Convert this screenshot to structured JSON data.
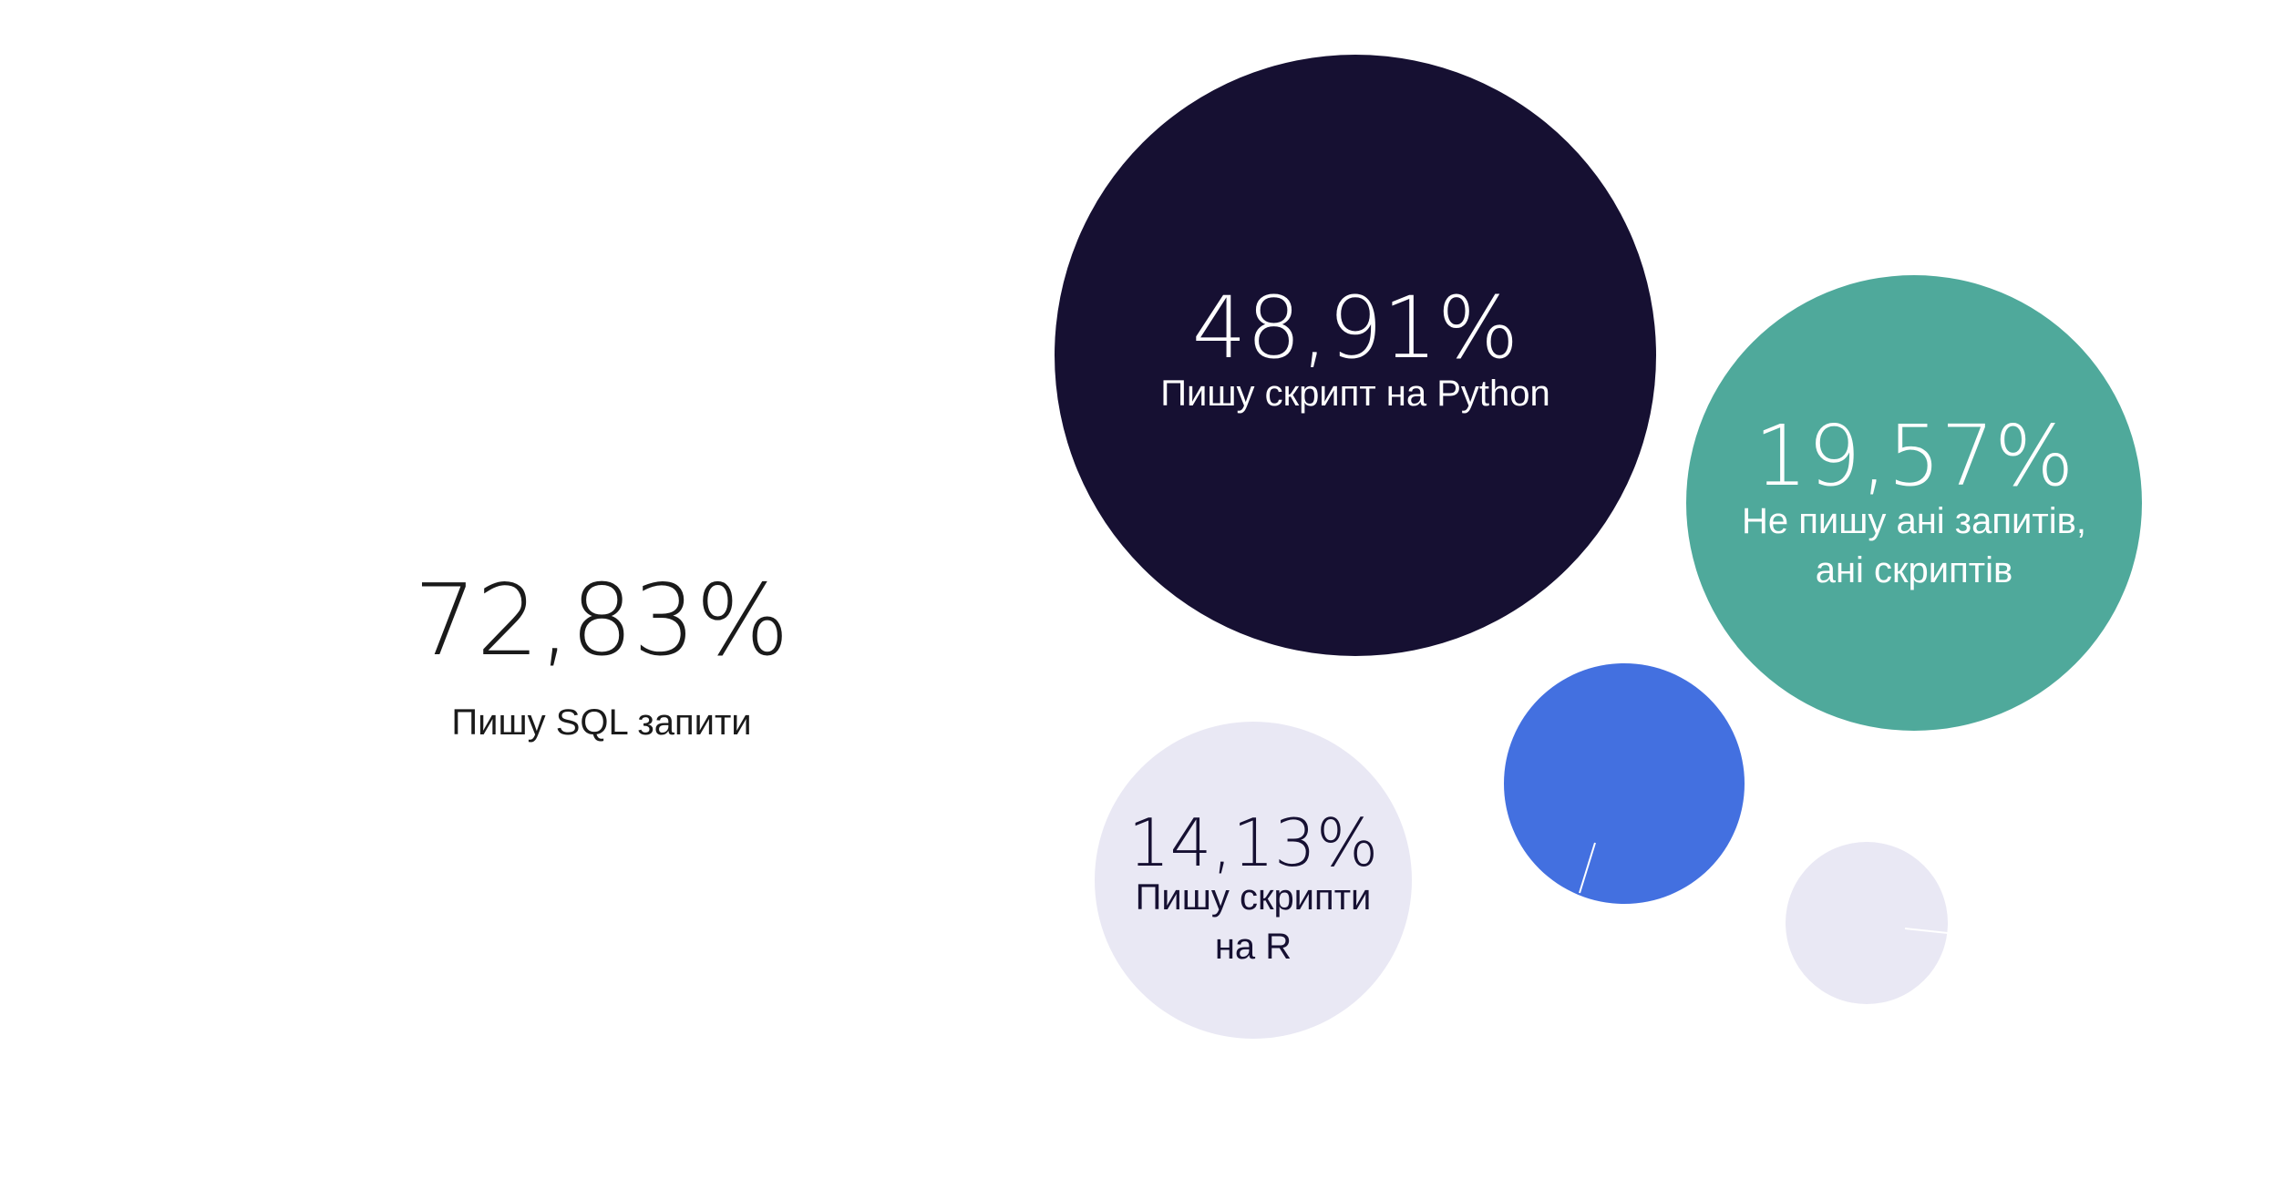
{
  "chart_data": {
    "type": "bubble",
    "title": "",
    "bubbles": [
      {
        "id": "sql",
        "value": 72.83,
        "value_label": "72,83%",
        "label": [
          "Пишу SQL запити"
        ],
        "color": "#ffffff",
        "text_color": "#1a1a1a"
      },
      {
        "id": "python",
        "value": 48.91,
        "value_label": "48,91%",
        "label": [
          "Пишу скрипт на Python"
        ],
        "color": "#161032",
        "text_color": "#ffffff"
      },
      {
        "id": "none",
        "value": 19.57,
        "value_label": "19,57%",
        "label": [
          "Не пишу ані запитів,",
          "ані скриптів"
        ],
        "color": "#4fa99b",
        "text_color": "#ffffff"
      },
      {
        "id": "r",
        "value": 14.13,
        "value_label": "14,13%",
        "label": [
          "Пишу скрипти",
          "на R"
        ],
        "color": "#e9e8f4",
        "text_color": "#161032"
      },
      {
        "id": "other_blue",
        "value": null,
        "value_label": "",
        "label": [],
        "color": "#4370e0",
        "text_color": "#ffffff"
      },
      {
        "id": "other_light",
        "value": null,
        "value_label": "",
        "label": [],
        "color": "#e9e8f4",
        "text_color": "#161032"
      }
    ]
  }
}
